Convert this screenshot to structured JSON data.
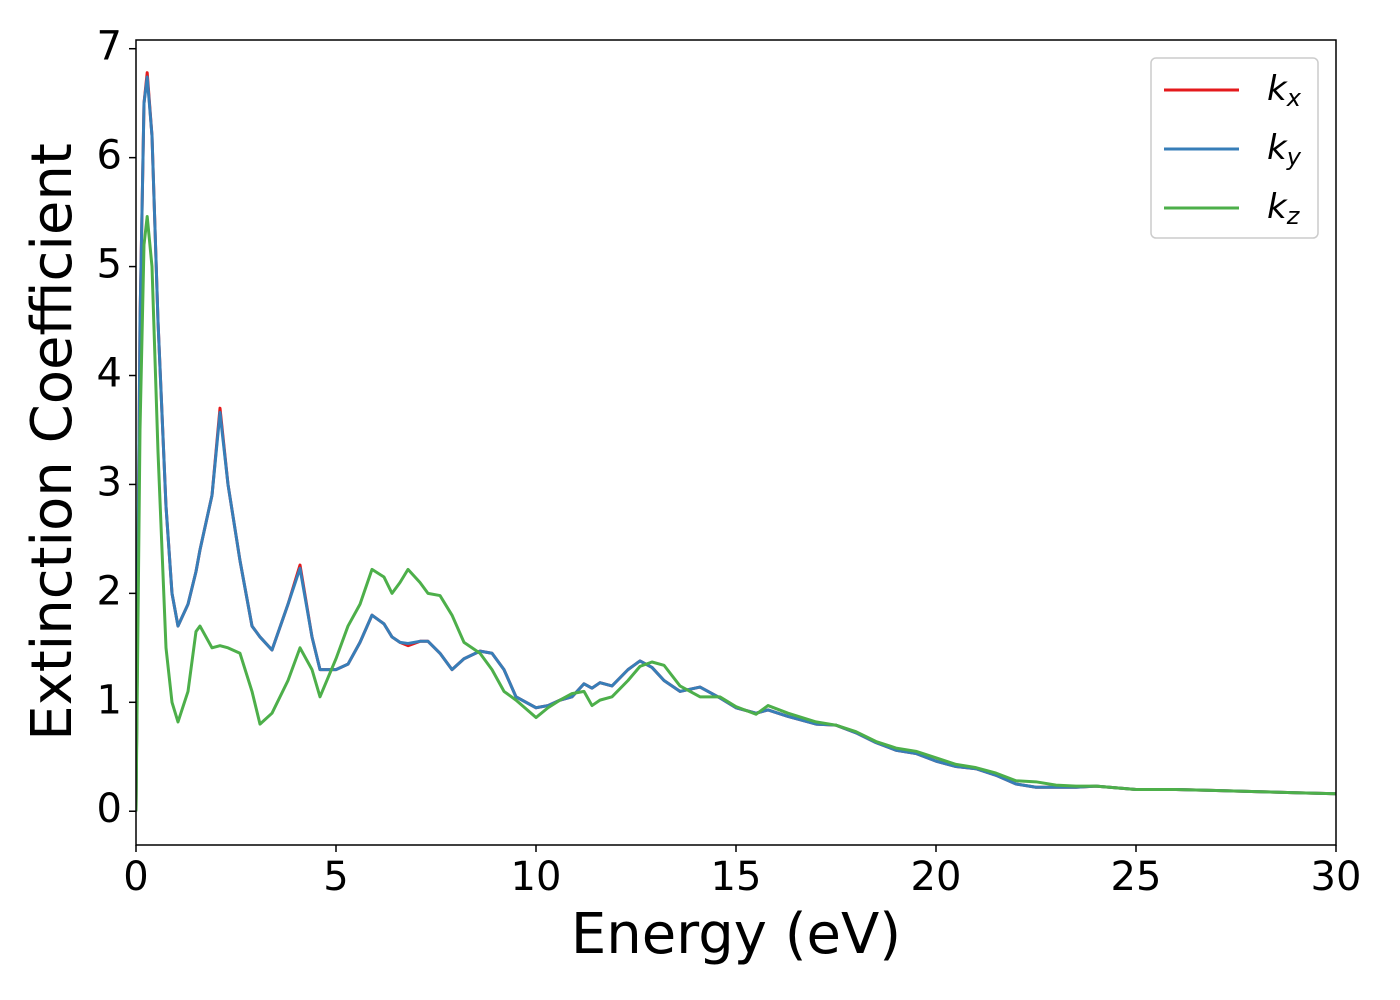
{
  "chart_data": {
    "type": "line",
    "xlabel": "Energy (eV)",
    "ylabel": "Extinction Coefficient",
    "x": [
      0,
      0.1,
      0.2,
      0.28,
      0.4,
      0.55,
      0.75,
      0.9,
      1.05,
      1.3,
      1.5,
      1.6,
      1.9,
      2.1,
      2.3,
      2.6,
      2.9,
      3.1,
      3.4,
      3.8,
      4.1,
      4.4,
      4.6,
      5.0,
      5.3,
      5.6,
      5.9,
      6.2,
      6.4,
      6.6,
      6.8,
      7.1,
      7.3,
      7.6,
      7.9,
      8.2,
      8.6,
      8.9,
      9.2,
      9.5,
      10.0,
      10.3,
      10.6,
      10.9,
      11.2,
      11.4,
      11.6,
      11.9,
      12.3,
      12.6,
      12.9,
      13.2,
      13.6,
      14.1,
      14.6,
      15.0,
      15.5,
      15.8,
      16.3,
      17.0,
      17.5,
      18.0,
      18.5,
      19.0,
      19.5,
      20.0,
      20.5,
      21.0,
      21.5,
      22.0,
      22.5,
      23.0,
      23.5,
      24.0,
      25.0,
      26.0,
      27.0,
      28.0,
      29.0,
      30.0
    ],
    "series": [
      {
        "name": "kx",
        "color": "#e41a1c",
        "values": [
          0,
          4.5,
          6.5,
          6.78,
          6.2,
          4.5,
          2.8,
          2.0,
          1.7,
          1.9,
          2.2,
          2.4,
          2.9,
          3.7,
          3.0,
          2.3,
          1.7,
          1.6,
          1.48,
          1.9,
          2.26,
          1.6,
          1.3,
          1.3,
          1.35,
          1.55,
          1.8,
          1.72,
          1.6,
          1.55,
          1.52,
          1.56,
          1.56,
          1.45,
          1.3,
          1.4,
          1.47,
          1.45,
          1.3,
          1.05,
          0.95,
          0.97,
          1.02,
          1.05,
          1.17,
          1.13,
          1.18,
          1.15,
          1.3,
          1.38,
          1.32,
          1.2,
          1.1,
          1.14,
          1.04,
          0.95,
          0.9,
          0.93,
          0.87,
          0.8,
          0.79,
          0.72,
          0.63,
          0.56,
          0.53,
          0.46,
          0.41,
          0.39,
          0.33,
          0.25,
          0.22,
          0.22,
          0.22,
          0.23,
          0.2,
          0.2,
          0.19,
          0.18,
          0.17,
          0.16
        ]
      },
      {
        "name": "ky",
        "color": "#377eb8",
        "values": [
          0,
          4.5,
          6.5,
          6.74,
          6.2,
          4.5,
          2.8,
          2.0,
          1.7,
          1.9,
          2.2,
          2.4,
          2.9,
          3.66,
          3.0,
          2.3,
          1.7,
          1.6,
          1.48,
          1.9,
          2.23,
          1.6,
          1.3,
          1.3,
          1.35,
          1.55,
          1.8,
          1.72,
          1.6,
          1.55,
          1.54,
          1.56,
          1.56,
          1.45,
          1.3,
          1.4,
          1.47,
          1.45,
          1.3,
          1.05,
          0.95,
          0.97,
          1.02,
          1.05,
          1.17,
          1.13,
          1.18,
          1.15,
          1.3,
          1.38,
          1.32,
          1.2,
          1.1,
          1.14,
          1.04,
          0.95,
          0.9,
          0.93,
          0.87,
          0.8,
          0.79,
          0.72,
          0.63,
          0.56,
          0.53,
          0.46,
          0.41,
          0.39,
          0.33,
          0.25,
          0.22,
          0.22,
          0.22,
          0.23,
          0.2,
          0.2,
          0.19,
          0.18,
          0.17,
          0.16
        ]
      },
      {
        "name": "kz",
        "color": "#4daf4a",
        "values": [
          0,
          3.5,
          5.2,
          5.46,
          5.0,
          3.3,
          1.5,
          1.0,
          0.82,
          1.1,
          1.65,
          1.7,
          1.5,
          1.52,
          1.5,
          1.45,
          1.1,
          0.8,
          0.9,
          1.2,
          1.5,
          1.3,
          1.05,
          1.4,
          1.7,
          1.9,
          2.22,
          2.15,
          2.0,
          2.1,
          2.22,
          2.1,
          2.0,
          1.98,
          1.8,
          1.55,
          1.45,
          1.3,
          1.1,
          1.02,
          0.86,
          0.95,
          1.02,
          1.08,
          1.1,
          0.97,
          1.02,
          1.05,
          1.2,
          1.33,
          1.37,
          1.34,
          1.15,
          1.05,
          1.05,
          0.96,
          0.89,
          0.97,
          0.9,
          0.82,
          0.79,
          0.73,
          0.64,
          0.58,
          0.55,
          0.49,
          0.43,
          0.4,
          0.35,
          0.28,
          0.27,
          0.24,
          0.23,
          0.23,
          0.2,
          0.2,
          0.19,
          0.18,
          0.17,
          0.16
        ]
      }
    ],
    "xlim": [
      0,
      30
    ],
    "xticks": [
      0,
      5,
      10,
      15,
      20,
      25,
      30
    ],
    "ylim": [
      -0.31,
      7.08
    ],
    "yticks": [
      0,
      1,
      2,
      3,
      4,
      5,
      6,
      7
    ],
    "grid": false,
    "legend": "upper right"
  }
}
